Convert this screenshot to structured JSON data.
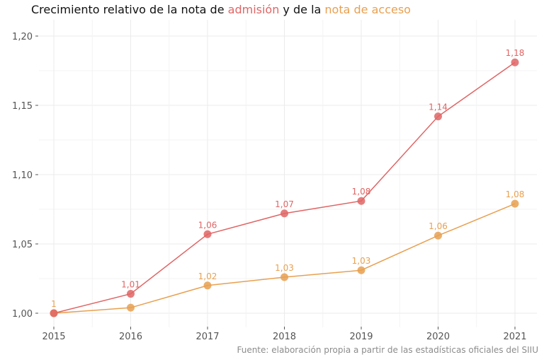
{
  "title": {
    "prefix": "Crecimiento relativo de la nota de ",
    "series1": "admisión",
    "middle": " y de la ",
    "series2": "nota de acceso"
  },
  "source": "Fuente: elaboración propia a partir de las estadísticas oficiales del SIIU",
  "colors": {
    "admision": "#e06565",
    "acceso": "#e8a050"
  },
  "chart_data": {
    "type": "line",
    "x": [
      2015,
      2016,
      2017,
      2018,
      2019,
      2020,
      2021
    ],
    "x_tick_labels": [
      "2015",
      "2016",
      "2017",
      "2018",
      "2019",
      "2020",
      "2021"
    ],
    "y_ticks": [
      1.0,
      1.05,
      1.1,
      1.15,
      1.2
    ],
    "y_tick_labels": [
      "1,00",
      "1,05",
      "1,10",
      "1,15",
      "1,20"
    ],
    "ylim": [
      0.99,
      1.21
    ],
    "grid": true,
    "series": [
      {
        "name": "admisión",
        "color": "#e06565",
        "values": [
          1.0,
          1.014,
          1.057,
          1.072,
          1.081,
          1.142,
          1.181
        ],
        "labels": [
          "",
          "1,01",
          "1,06",
          "1,07",
          "1,08",
          "1,14",
          "1,18"
        ]
      },
      {
        "name": "nota de acceso",
        "color": "#e8a050",
        "values": [
          1.0,
          1.004,
          1.02,
          1.026,
          1.031,
          1.056,
          1.079
        ],
        "labels": [
          "1",
          "",
          "1,02",
          "1,03",
          "1,03",
          "1,06",
          "1,08"
        ]
      }
    ]
  }
}
